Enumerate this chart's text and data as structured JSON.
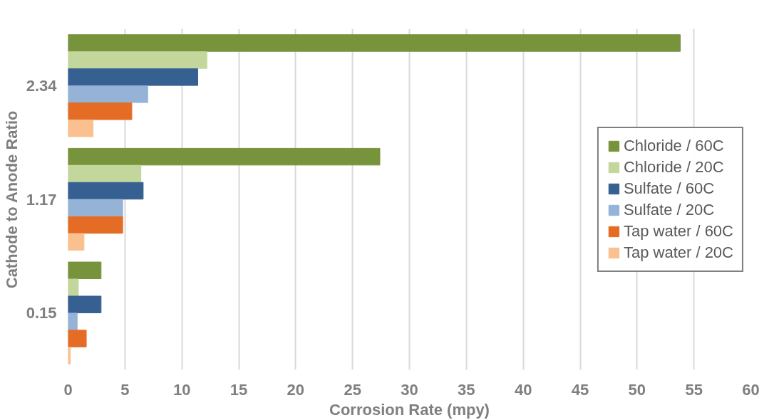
{
  "chart_data": {
    "type": "bar",
    "orientation": "horizontal",
    "xlabel": "Corrosion Rate (mpy)",
    "ylabel": "Cathode to Anode Ratio",
    "categories": [
      "2.34",
      "1.17",
      "0.15"
    ],
    "series": [
      {
        "name": "Chloride / 60C",
        "color": "#77933c",
        "values": [
          53.8,
          27.4,
          2.9
        ]
      },
      {
        "name": "Chloride / 20C",
        "color": "#c3d69b",
        "values": [
          12.2,
          6.4,
          0.9
        ]
      },
      {
        "name": "Sulfate / 60C",
        "color": "#366092",
        "values": [
          11.4,
          6.6,
          2.9
        ]
      },
      {
        "name": "Sulfate / 20C",
        "color": "#95b3d7",
        "values": [
          7.0,
          4.8,
          0.8
        ]
      },
      {
        "name": "Tap water / 60C",
        "color": "#e46c25",
        "values": [
          5.6,
          4.8,
          1.6
        ]
      },
      {
        "name": "Tap water / 20C",
        "color": "#fac090",
        "values": [
          2.2,
          1.4,
          0.2
        ]
      }
    ],
    "xlim": [
      0,
      60
    ],
    "xticks": [
      0,
      5,
      10,
      15,
      20,
      25,
      30,
      35,
      40,
      45,
      50,
      55,
      60
    ],
    "grid": "x",
    "legend": "right"
  }
}
